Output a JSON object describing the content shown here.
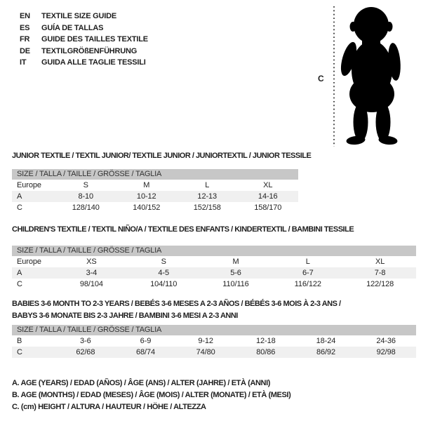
{
  "header": {
    "languages": [
      {
        "code": "EN",
        "label": "TEXTILE SIZE GUIDE"
      },
      {
        "code": "ES",
        "label": "GUÍA DE TALLAS"
      },
      {
        "code": "FR",
        "label": "GUIDE DES TAILLES TEXTILE"
      },
      {
        "code": "DE",
        "label": "TEXTILGRÖßENFÜHRUNG"
      },
      {
        "code": "IT",
        "label": "GUIDA ALLE TAGLIE TESSILI"
      }
    ]
  },
  "figure": {
    "height_marker": "C"
  },
  "size_tables": [
    {
      "title_lines": [
        "JUNIOR TEXTILE / TEXTIL JUNIOR/ TEXTILE JUNIOR / JUNIORTEXTIL / JUNIOR TESSILE"
      ],
      "size_header": "SIZE / TALLA / TAILLE / GRÖSSE / TAGLIA",
      "rows": [
        [
          "Europe",
          "S",
          "M",
          "L",
          "XL"
        ],
        [
          "A",
          "8-10",
          "10-12",
          "12-13",
          "14-16"
        ],
        [
          "C",
          "128/140",
          "140/152",
          "152/158",
          "158/170"
        ]
      ]
    },
    {
      "title_lines": [
        "CHILDREN'S TEXTILE / TEXTIL NIÑO/A / TEXTILE DES ENFANTS / KINDERTEXTIL / BAMBINI TESSILE"
      ],
      "size_header": "SIZE / TALLA / TAILLE / GRÖSSE / TAGLIA",
      "rows": [
        [
          "Europe",
          "XS",
          "S",
          "M",
          "L",
          "XL"
        ],
        [
          "A",
          "3-4",
          "4-5",
          "5-6",
          "6-7",
          "7-8"
        ],
        [
          "C",
          "98/104",
          "104/110",
          "110/116",
          "116/122",
          "122/128"
        ]
      ]
    },
    {
      "title_lines": [
        "BABIES 3-6 MONTH TO 2-3 YEARS / BEBÉS 3-6 MESES A 2-3 AÑOS / BÉBÉS 3-6 MOIS À 2-3 ANS /",
        "BABYS 3-6 MONATE BIS 2-3 JAHRE / BAMBINI 3-6 MESI A 2-3 ANNI"
      ],
      "size_header": "SIZE / TALLA / TAILLE / GRÖSSE / TAGLIA",
      "rows": [
        [
          "B",
          "3-6",
          "6-9",
          "9-12",
          "12-18",
          "18-24",
          "24-36"
        ],
        [
          "C",
          "62/68",
          "68/74",
          "74/80",
          "80/86",
          "86/92",
          "92/98"
        ]
      ]
    }
  ],
  "legend": {
    "lines": [
      "A. AGE (YEARS) / EDAD (AÑOS) / ÂGE (ANS) / ALTER (JAHRE) / ETÀ (ANNI)",
      "B. AGE (MONTHS) / EDAD (MESES) / ÂGE (MOIS) / ALTER (MONATE) / ETÀ (MESI)",
      "C. (cm) HEIGHT / ALTURA / HAUTEUR / HÖHE / ALTEZZA"
    ]
  },
  "colors": {
    "silhouette": "#000000",
    "band_bg": "#c7c7c7",
    "shaded_row_bg": "#f0f0f0",
    "text": "#1f1f1f"
  }
}
